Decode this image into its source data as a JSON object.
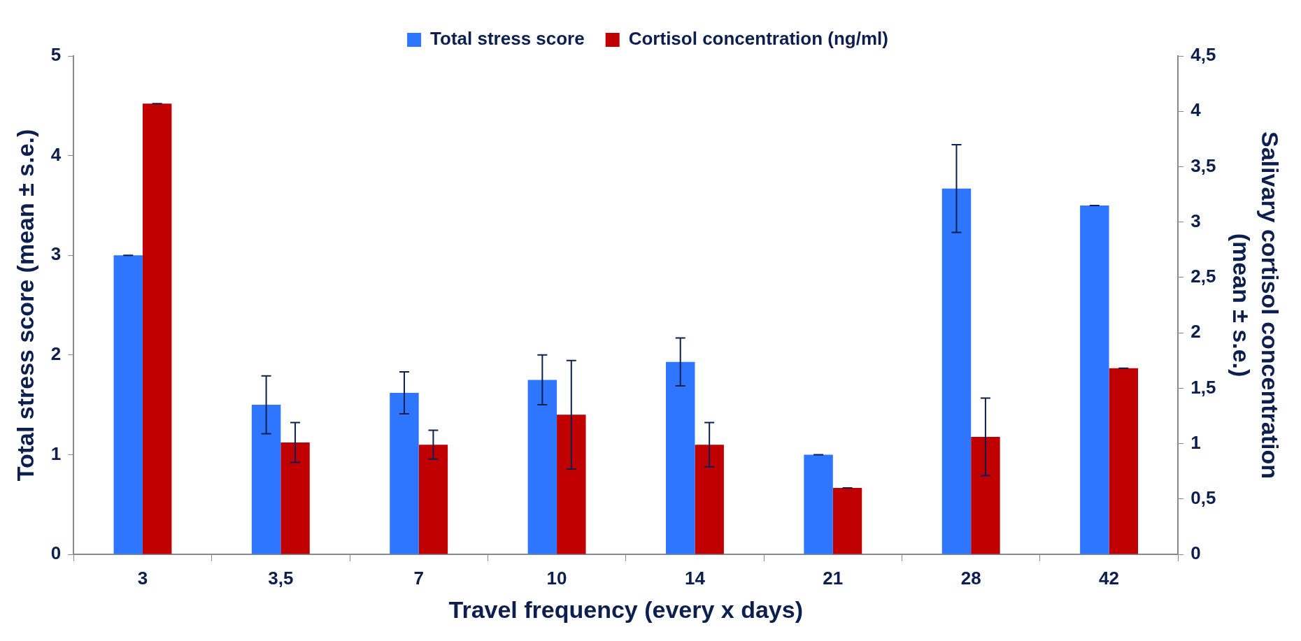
{
  "chart_data": {
    "type": "bar",
    "xlabel": "Travel frequency (every x days)",
    "ylabel": "Total stress score (mean ± s.e.)",
    "y2label": "Salivary cortisol concentration\n(mean ± s.e.)",
    "categories": [
      "3",
      "3,5",
      "7",
      "10",
      "14",
      "21",
      "28",
      "42"
    ],
    "series": [
      {
        "name": "Total stress score",
        "color": "#2e75ff",
        "values": [
          3.0,
          1.5,
          1.62,
          1.75,
          1.93,
          1.0,
          3.67,
          3.5
        ],
        "errors": [
          0,
          0.29,
          0.21,
          0.25,
          0.24,
          0,
          0.44,
          0
        ]
      },
      {
        "name": "Cortisol concentration (ng/ml)",
        "color": "#c00000",
        "axis": "y2",
        "values": [
          4.07,
          1.01,
          0.99,
          1.26,
          0.99,
          0.6,
          1.06,
          1.68
        ],
        "errors": [
          0,
          0.18,
          0.13,
          0.49,
          0.2,
          0,
          0.35,
          0
        ]
      }
    ],
    "ylim": [
      0,
      5
    ],
    "yticks": [
      0,
      1,
      2,
      3,
      4,
      5
    ],
    "y2lim": [
      0,
      4.5
    ],
    "y2ticks": [
      0,
      {
        "value": 0.5,
        "label": "0,5"
      },
      1,
      {
        "value": 1.5,
        "label": "1,5"
      },
      2,
      {
        "value": 2.5,
        "label": "2,5"
      },
      3,
      {
        "value": 3.5,
        "label": "3,5"
      },
      4,
      {
        "value": 4.5,
        "label": "4,5"
      }
    ],
    "grid": false,
    "legend": "top"
  }
}
